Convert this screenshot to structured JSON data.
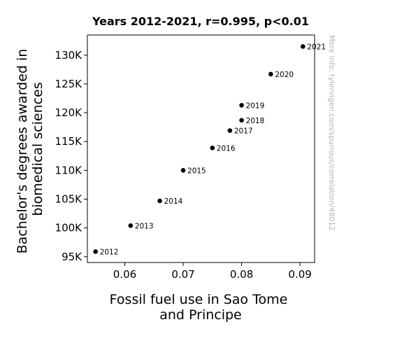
{
  "chart_data": {
    "type": "scatter",
    "title": "Years 2012-2021, r=0.995, p<0.01",
    "xlabel_lines": [
      "Fossil fuel use in Sao Tome",
      "and Principe"
    ],
    "ylabel_lines": [
      "Bachelor's degrees awarded in",
      "biomedical sciences"
    ],
    "xlim": [
      0.0536,
      0.0925
    ],
    "ylim": [
      94000,
      133500
    ],
    "x_ticks": [
      0.06,
      0.07,
      0.08,
      0.09
    ],
    "x_tick_labels": [
      "0.06",
      "0.07",
      "0.08",
      "0.09"
    ],
    "y_ticks": [
      95000,
      100000,
      105000,
      110000,
      115000,
      120000,
      125000,
      130000
    ],
    "y_tick_labels": [
      "95K",
      "100K",
      "105K",
      "110K",
      "115K",
      "120K",
      "125K",
      "130K"
    ],
    "grid": false,
    "points": [
      {
        "label": "2012",
        "x": 0.055,
        "y": 95900
      },
      {
        "label": "2013",
        "x": 0.061,
        "y": 100400
      },
      {
        "label": "2014",
        "x": 0.066,
        "y": 104700
      },
      {
        "label": "2015",
        "x": 0.07,
        "y": 110000
      },
      {
        "label": "2016",
        "x": 0.075,
        "y": 113900
      },
      {
        "label": "2017",
        "x": 0.078,
        "y": 116900
      },
      {
        "label": "2018",
        "x": 0.08,
        "y": 118700
      },
      {
        "label": "2019",
        "x": 0.08,
        "y": 121300
      },
      {
        "label": "2020",
        "x": 0.085,
        "y": 126700
      },
      {
        "label": "2021",
        "x": 0.0905,
        "y": 131500
      }
    ],
    "watermark": "More info: tylervigen.com/spurious/correlation/48012",
    "point_color": "#000000"
  }
}
